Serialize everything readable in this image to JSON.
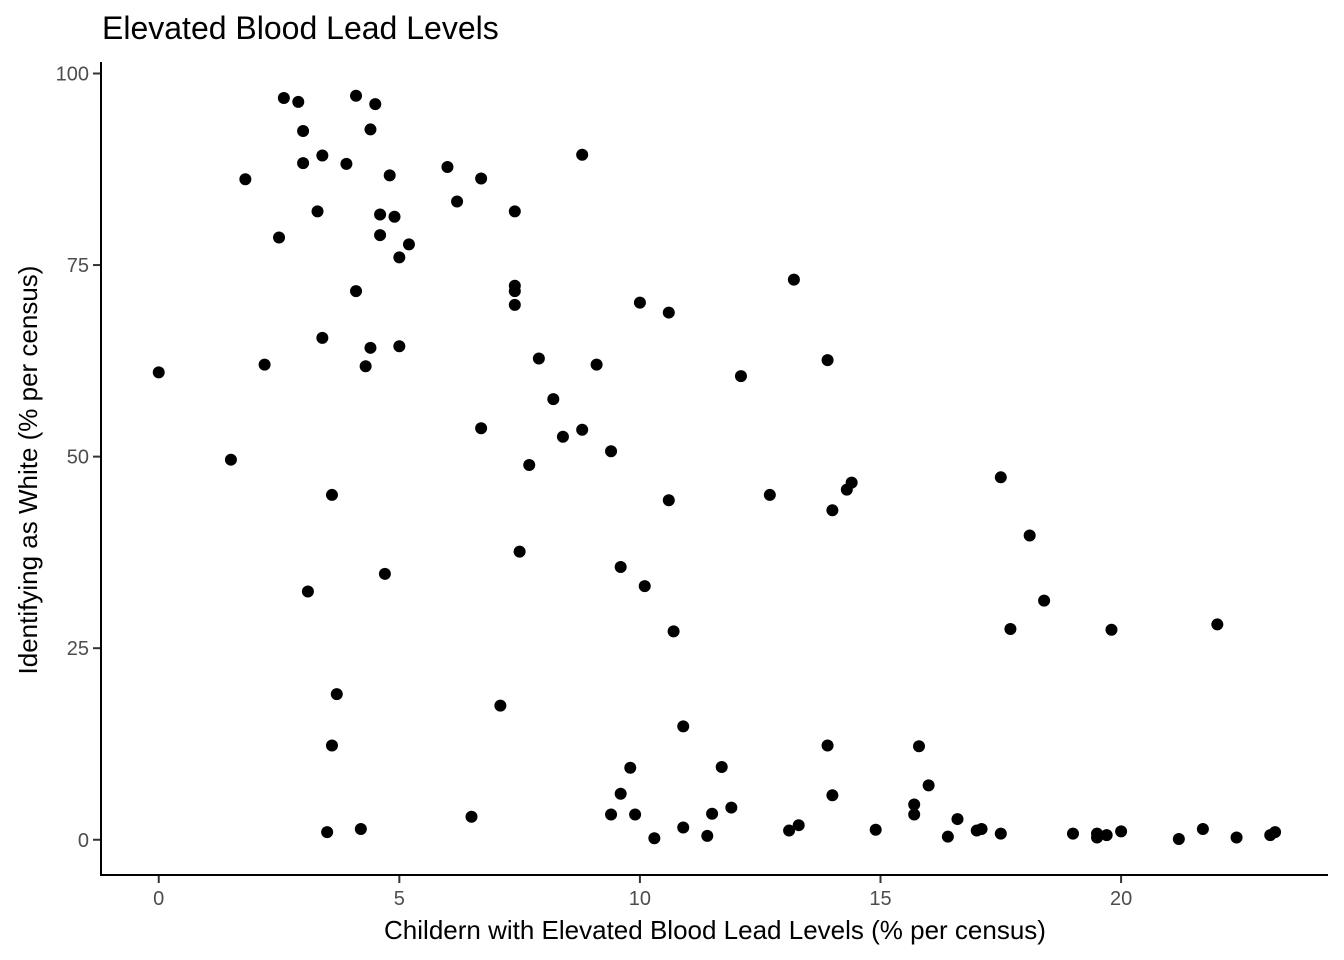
{
  "chart_data": {
    "type": "scatter",
    "title": "Elevated Blood Lead Levels",
    "xlabel": "Childern with Elevated Blood Lead Levels (% per census)",
    "ylabel": "Identifying as White (% per census)",
    "xlim": [
      -1.2,
      24.3
    ],
    "ylim": [
      -4.6,
      101.5
    ],
    "xticks": [
      0,
      5,
      10,
      15,
      20
    ],
    "yticks": [
      0,
      25,
      50,
      75,
      100
    ],
    "grid": false,
    "point_color": "#000000",
    "points": [
      [
        0.0,
        61.0
      ],
      [
        1.5,
        49.6
      ],
      [
        1.8,
        86.2
      ],
      [
        2.2,
        62.0
      ],
      [
        2.5,
        78.6
      ],
      [
        2.6,
        96.8
      ],
      [
        2.9,
        96.3
      ],
      [
        3.0,
        92.5
      ],
      [
        3.0,
        88.3
      ],
      [
        3.1,
        32.4
      ],
      [
        3.3,
        82.0
      ],
      [
        3.4,
        89.3
      ],
      [
        3.4,
        65.5
      ],
      [
        3.5,
        1.0
      ],
      [
        3.6,
        45.0
      ],
      [
        3.6,
        12.3
      ],
      [
        3.7,
        19.0
      ],
      [
        3.9,
        88.2
      ],
      [
        4.1,
        71.6
      ],
      [
        4.1,
        97.1
      ],
      [
        4.2,
        1.4
      ],
      [
        4.3,
        61.8
      ],
      [
        4.4,
        92.7
      ],
      [
        4.4,
        64.2
      ],
      [
        4.5,
        96.0
      ],
      [
        4.6,
        81.6
      ],
      [
        4.6,
        78.9
      ],
      [
        4.7,
        34.7
      ],
      [
        4.8,
        86.7
      ],
      [
        4.9,
        81.3
      ],
      [
        5.0,
        76.0
      ],
      [
        5.0,
        64.4
      ],
      [
        5.2,
        77.7
      ],
      [
        6.0,
        87.8
      ],
      [
        6.2,
        83.3
      ],
      [
        6.5,
        3.0
      ],
      [
        6.7,
        53.7
      ],
      [
        6.7,
        86.3
      ],
      [
        7.1,
        17.5
      ],
      [
        7.4,
        82.0
      ],
      [
        7.4,
        72.3
      ],
      [
        7.4,
        71.6
      ],
      [
        7.4,
        69.8
      ],
      [
        7.5,
        37.6
      ],
      [
        7.7,
        48.9
      ],
      [
        7.9,
        62.8
      ],
      [
        8.2,
        57.5
      ],
      [
        8.4,
        52.6
      ],
      [
        8.8,
        53.5
      ],
      [
        8.8,
        89.4
      ],
      [
        9.1,
        62.0
      ],
      [
        9.4,
        50.7
      ],
      [
        9.4,
        3.3
      ],
      [
        9.6,
        35.6
      ],
      [
        9.6,
        6.0
      ],
      [
        9.8,
        9.4
      ],
      [
        9.9,
        3.3
      ],
      [
        10.0,
        70.1
      ],
      [
        10.1,
        33.1
      ],
      [
        10.3,
        0.2
      ],
      [
        10.6,
        44.3
      ],
      [
        10.6,
        68.8
      ],
      [
        10.7,
        27.2
      ],
      [
        10.9,
        1.6
      ],
      [
        10.9,
        14.8
      ],
      [
        11.4,
        0.5
      ],
      [
        11.5,
        3.4
      ],
      [
        11.7,
        9.5
      ],
      [
        11.9,
        4.2
      ],
      [
        12.1,
        60.5
      ],
      [
        12.7,
        45.0
      ],
      [
        13.1,
        1.2
      ],
      [
        13.2,
        73.1
      ],
      [
        13.3,
        1.9
      ],
      [
        13.9,
        62.6
      ],
      [
        13.9,
        12.3
      ],
      [
        14.0,
        43.0
      ],
      [
        14.0,
        5.8
      ],
      [
        14.3,
        45.7
      ],
      [
        14.4,
        46.6
      ],
      [
        14.9,
        1.3
      ],
      [
        15.7,
        3.3
      ],
      [
        15.7,
        4.6
      ],
      [
        15.8,
        12.2
      ],
      [
        16.0,
        7.1
      ],
      [
        16.4,
        0.4
      ],
      [
        16.6,
        2.7
      ],
      [
        17.0,
        1.2
      ],
      [
        17.1,
        1.4
      ],
      [
        17.5,
        0.8
      ],
      [
        17.5,
        47.3
      ],
      [
        17.7,
        27.5
      ],
      [
        18.1,
        39.7
      ],
      [
        18.4,
        31.2
      ],
      [
        19.0,
        0.8
      ],
      [
        19.5,
        0.3
      ],
      [
        19.5,
        0.8
      ],
      [
        19.7,
        0.6
      ],
      [
        19.8,
        27.4
      ],
      [
        20.0,
        1.1
      ],
      [
        21.2,
        0.1
      ],
      [
        21.7,
        1.4
      ],
      [
        22.0,
        28.1
      ],
      [
        22.4,
        0.3
      ],
      [
        23.1,
        0.6
      ],
      [
        23.2,
        1.0
      ]
    ]
  }
}
